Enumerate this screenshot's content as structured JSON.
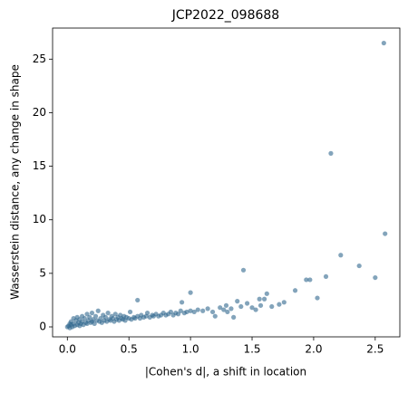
{
  "chart_data": {
    "type": "scatter",
    "title": "JCP2022_098688",
    "xlabel": "|Cohen's d|, a shift in location",
    "ylabel": "Wasserstein distance, any change in shape",
    "color": "#31688e",
    "x": [
      0.0,
      0.01,
      0.02,
      0.02,
      0.03,
      0.03,
      0.04,
      0.05,
      0.05,
      0.06,
      0.07,
      0.08,
      0.08,
      0.09,
      0.1,
      0.1,
      0.11,
      0.12,
      0.12,
      0.13,
      0.14,
      0.15,
      0.16,
      0.16,
      0.17,
      0.18,
      0.19,
      0.2,
      0.2,
      0.21,
      0.22,
      0.23,
      0.24,
      0.25,
      0.26,
      0.27,
      0.28,
      0.29,
      0.3,
      0.31,
      0.32,
      0.33,
      0.34,
      0.35,
      0.36,
      0.37,
      0.38,
      0.39,
      0.4,
      0.41,
      0.42,
      0.43,
      0.44,
      0.45,
      0.46,
      0.47,
      0.48,
      0.5,
      0.51,
      0.52,
      0.54,
      0.55,
      0.57,
      0.57,
      0.59,
      0.6,
      0.62,
      0.64,
      0.65,
      0.67,
      0.69,
      0.7,
      0.72,
      0.74,
      0.76,
      0.78,
      0.8,
      0.82,
      0.84,
      0.86,
      0.88,
      0.9,
      0.92,
      0.93,
      0.95,
      0.97,
      1.0,
      1.0,
      1.03,
      1.06,
      1.1,
      1.14,
      1.18,
      1.2,
      1.24,
      1.27,
      1.29,
      1.3,
      1.33,
      1.35,
      1.38,
      1.41,
      1.43,
      1.46,
      1.5,
      1.53,
      1.56,
      1.57,
      1.6,
      1.62,
      1.66,
      1.72,
      1.76,
      1.85,
      1.94,
      1.97,
      2.03,
      2.1,
      2.14,
      2.22,
      2.37,
      2.5,
      2.57,
      2.58
    ],
    "values": [
      0.0,
      0.1,
      0.3,
      -0.1,
      0.5,
      0.2,
      0.0,
      0.8,
      0.3,
      0.1,
      0.6,
      0.2,
      0.9,
      0.4,
      0.1,
      0.7,
      0.3,
      1.0,
      0.5,
      0.2,
      0.8,
      0.4,
      1.2,
      0.3,
      0.6,
      0.9,
      0.4,
      1.3,
      0.5,
      0.7,
      0.3,
      1.0,
      0.6,
      1.5,
      0.5,
      0.8,
      0.4,
      1.1,
      0.6,
      0.9,
      0.5,
      1.3,
      0.7,
      0.6,
      1.0,
      0.8,
      0.5,
      1.2,
      0.7,
      0.9,
      0.6,
      1.1,
      0.8,
      0.7,
      1.0,
      0.6,
      0.9,
      0.8,
      1.4,
      0.7,
      0.9,
      0.8,
      2.5,
      1.0,
      0.8,
      1.1,
      0.9,
      1.0,
      1.3,
      0.9,
      1.1,
      1.0,
      1.2,
      1.0,
      1.1,
      1.3,
      1.1,
      1.2,
      1.4,
      1.1,
      1.3,
      1.2,
      1.5,
      2.3,
      1.3,
      1.4,
      3.2,
      1.5,
      1.4,
      1.6,
      1.5,
      1.7,
      1.4,
      1.0,
      1.8,
      1.6,
      2.0,
      1.4,
      1.7,
      0.9,
      2.4,
      1.9,
      5.3,
      2.2,
      1.8,
      1.6,
      2.6,
      2.0,
      2.6,
      3.1,
      1.9,
      2.1,
      2.3,
      3.4,
      4.4,
      4.4,
      2.7,
      4.7,
      16.2,
      6.7,
      5.7,
      4.6,
      26.5,
      8.7
    ],
    "xlim": [
      -0.12,
      2.7
    ],
    "ylim": [
      -0.93,
      27.9
    ],
    "xticks": [
      {
        "value": 0,
        "label": "0.0"
      },
      0.5,
      {
        "value": 1,
        "label": "1.0"
      },
      1.5,
      {
        "value": 2,
        "label": "2.0"
      },
      2.5
    ],
    "yticks": [
      0,
      5,
      10,
      15,
      20,
      25
    ]
  }
}
